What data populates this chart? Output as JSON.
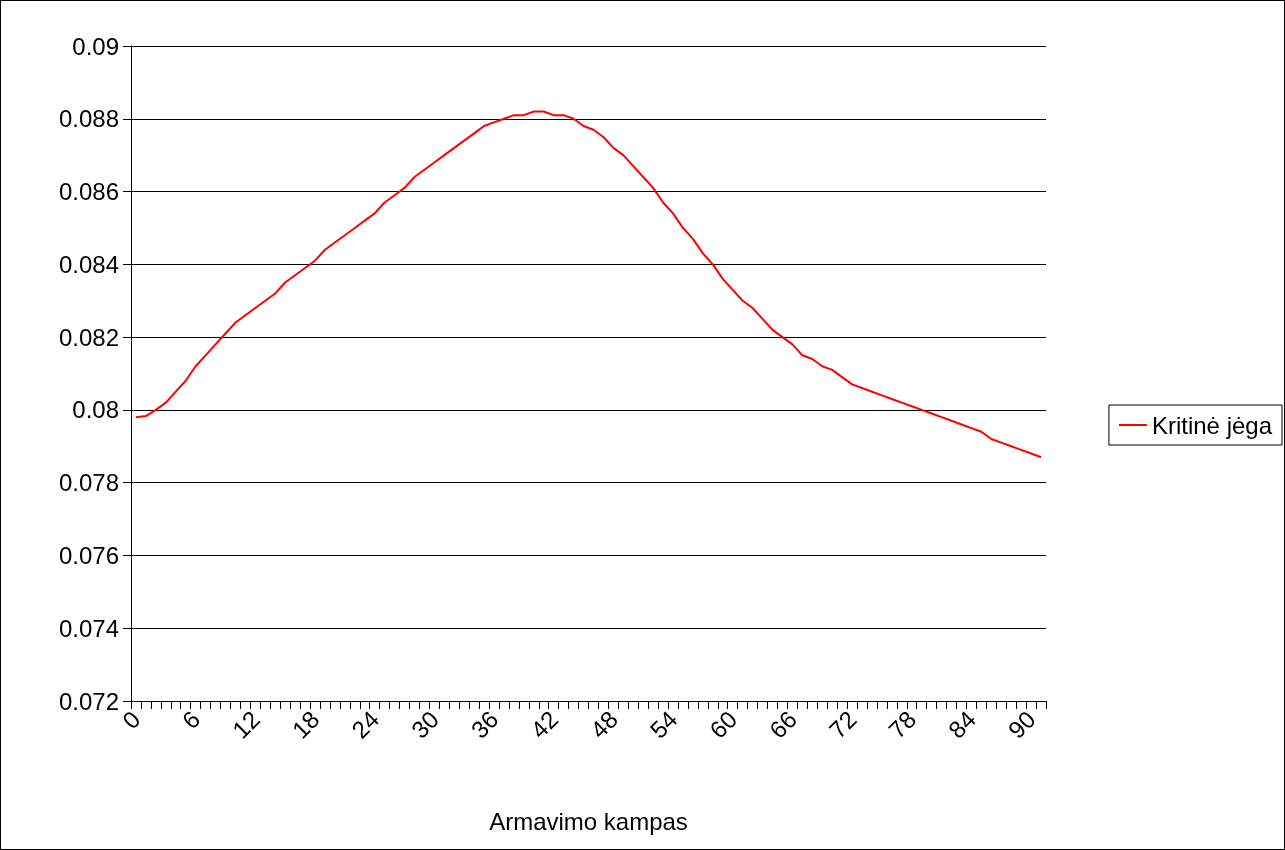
{
  "chart_data": {
    "type": "line",
    "xlabel": "Armavimo kampas",
    "categories": [
      "0",
      null,
      null,
      null,
      null,
      null,
      "6",
      null,
      null,
      null,
      null,
      null,
      "12",
      null,
      null,
      null,
      null,
      null,
      "18",
      null,
      null,
      null,
      null,
      null,
      "24",
      null,
      null,
      null,
      null,
      null,
      "30",
      null,
      null,
      null,
      null,
      null,
      "36",
      null,
      null,
      null,
      null,
      null,
      "42",
      null,
      null,
      null,
      null,
      null,
      "48",
      null,
      null,
      null,
      null,
      null,
      "54",
      null,
      null,
      null,
      null,
      null,
      "60",
      null,
      null,
      null,
      null,
      null,
      "66",
      null,
      null,
      null,
      null,
      null,
      "72",
      null,
      null,
      null,
      null,
      null,
      "78",
      null,
      null,
      null,
      null,
      null,
      "84",
      null,
      null,
      null,
      null,
      null,
      "90",
      null
    ],
    "series": [
      {
        "name": "Kritinė jėga",
        "color": "#ff0000",
        "values": [
          0.0798,
          0.07983,
          0.08,
          0.0802,
          0.0805,
          0.0808,
          0.0812,
          0.0815,
          0.0818,
          0.0821,
          0.0824,
          0.0826,
          0.0828,
          0.083,
          0.0832,
          0.0835,
          0.0837,
          0.0839,
          0.0841,
          0.0844,
          0.0846,
          0.0848,
          0.085,
          0.0852,
          0.0854,
          0.0857,
          0.0859,
          0.0861,
          0.0864,
          0.0866,
          0.0868,
          0.087,
          0.0872,
          0.0874,
          0.0876,
          0.0878,
          0.0879,
          0.088,
          0.0881,
          0.0881,
          0.0882,
          0.0882,
          0.0881,
          0.0881,
          0.088,
          0.0878,
          0.0877,
          0.0875,
          0.0872,
          0.087,
          0.0867,
          0.0864,
          0.0861,
          0.0857,
          0.0854,
          0.085,
          0.0847,
          0.0843,
          0.084,
          0.0836,
          0.0833,
          0.083,
          0.0828,
          0.0825,
          0.0822,
          0.082,
          0.0818,
          0.0815,
          0.0814,
          0.0812,
          0.0811,
          0.0809,
          0.0807,
          0.0806,
          0.0805,
          0.0804,
          0.0803,
          0.0802,
          0.0801,
          0.08,
          0.0799,
          0.0798,
          0.0797,
          0.0796,
          0.0795,
          0.0794,
          0.0792,
          0.0791,
          0.079,
          0.0789,
          0.0788,
          0.0787
        ]
      }
    ],
    "ylim": [
      0.072,
      0.09
    ],
    "yticks": [
      0.072,
      0.074,
      0.076,
      0.078,
      0.08,
      0.082,
      0.084,
      0.086,
      0.088,
      0.09
    ],
    "grid": "y",
    "legend": "right",
    "marker": "none",
    "line_style": "solid"
  }
}
